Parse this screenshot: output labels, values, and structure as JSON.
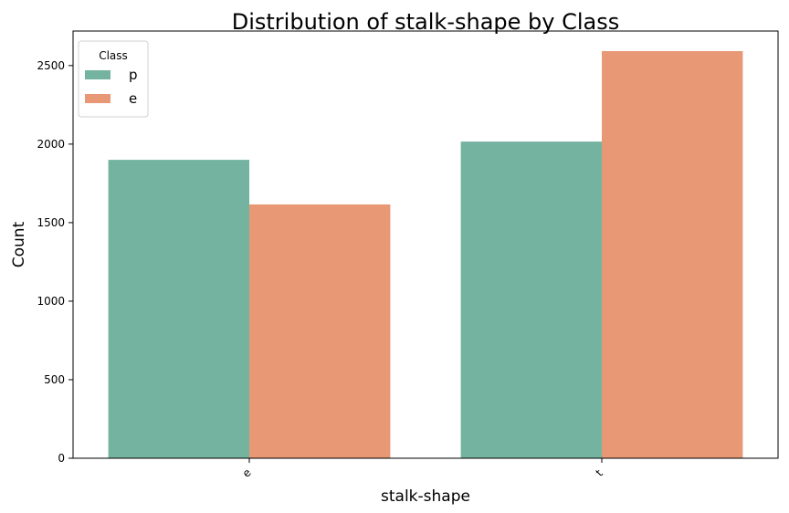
{
  "chart_data": {
    "type": "bar",
    "title": "Distribution of stalk-shape by Class",
    "xlabel": "stalk-shape",
    "ylabel": "Count",
    "categories": [
      "e",
      "t"
    ],
    "series": [
      {
        "name": "p",
        "values": [
          1900,
          2016
        ],
        "color": "#73b3a0"
      },
      {
        "name": "e",
        "values": [
          1616,
          2592
        ],
        "color": "#e89874"
      }
    ],
    "ylim": [
      0,
      2720
    ],
    "yticks": [
      0,
      500,
      1000,
      1500,
      2000,
      2500
    ],
    "legend": {
      "title": "Class",
      "placement": "top-left"
    },
    "grid": false
  }
}
